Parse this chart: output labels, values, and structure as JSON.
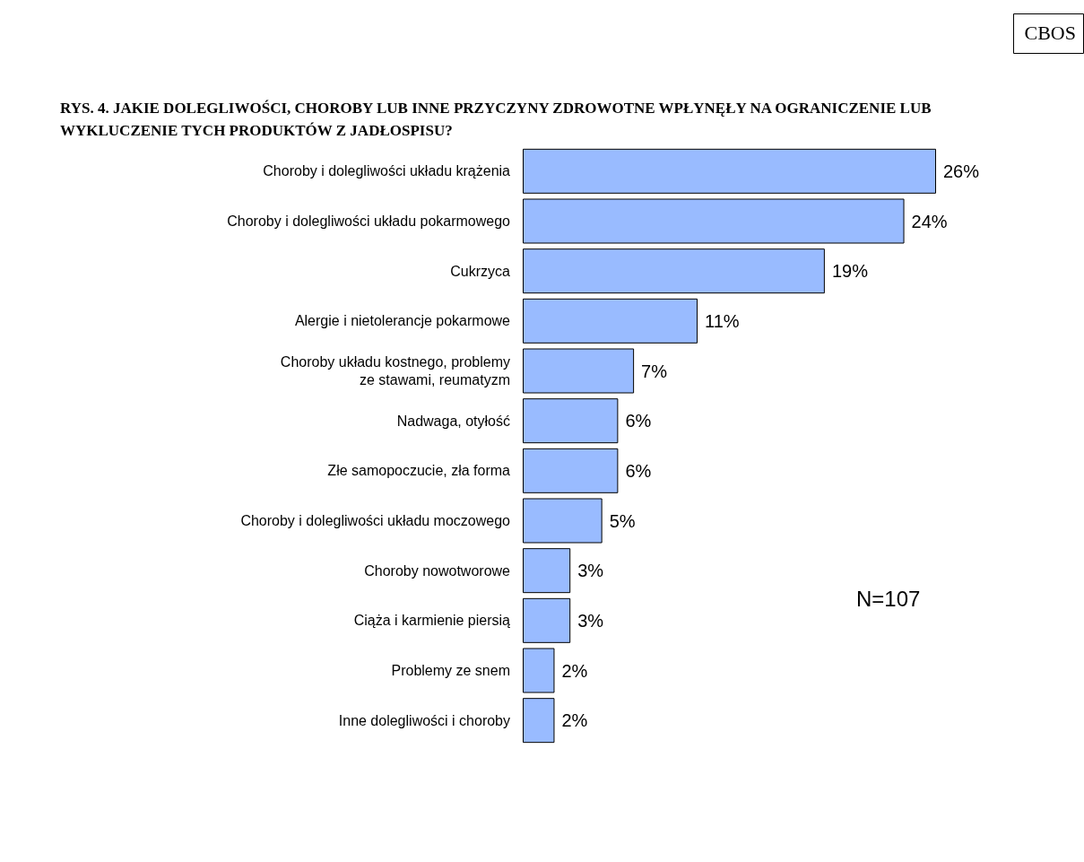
{
  "chart_data": {
    "type": "bar",
    "orientation": "horizontal",
    "title": "RYS. 4. JAKIE DOLEGLIWOŚCI, CHOROBY LUB INNE PRZYCZYNY ZDROWOTNE WPŁYNĘŁY NA OGRANICZENIE LUB WYKLUCZENIE TYCH PRODUKTÓW Z JADŁOSPISU?",
    "categories": [
      "Choroby i dolegliwości układu krążenia",
      "Choroby i dolegliwości układu pokarmowego",
      "Cukrzyca",
      "Alergie i nietolerancje pokarmowe",
      "Choroby układu kostnego, problemy\nze stawami, reumatyzm",
      "Nadwaga, otyłość",
      "Złe samopoczucie, zła forma",
      "Choroby i dolegliwości układu moczowego",
      "Choroby nowotworowe",
      "Ciąża i karmienie piersią",
      "Problemy ze snem",
      "Inne dolegliwości i choroby"
    ],
    "values": [
      26,
      24,
      19,
      11,
      7,
      6,
      6,
      5,
      3,
      3,
      2,
      2
    ],
    "value_labels": [
      "26%",
      "24%",
      "19%",
      "11%",
      "7%",
      "6%",
      "6%",
      "5%",
      "3%",
      "3%",
      "2%",
      "2%"
    ],
    "color": "#99bbff",
    "annotations": [
      "N=107",
      "CBOS"
    ]
  }
}
